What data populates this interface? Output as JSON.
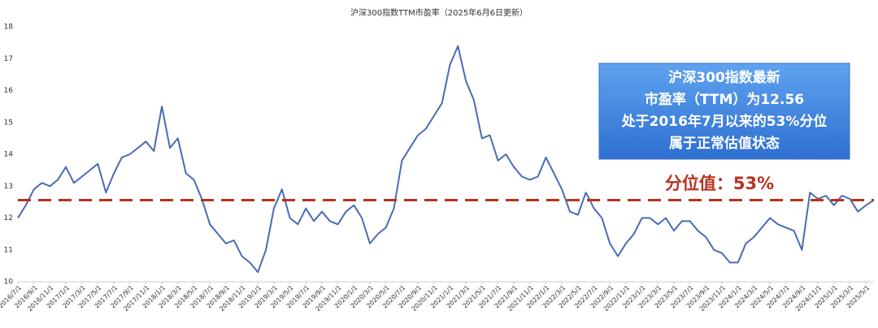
{
  "chart_data": {
    "type": "line",
    "title": "沪深300指数TTM市盈率（2025年6月6日更新）",
    "categories": [
      "2016/7/1",
      null,
      "2016/9/1",
      null,
      "2016/11/1",
      null,
      "2017/1/1",
      null,
      "2017/3/1",
      null,
      "2017/5/1",
      null,
      "2017/7/1",
      null,
      "2017/9/1",
      null,
      "2017/11/1",
      null,
      "2018/1/1",
      null,
      "2018/3/1",
      null,
      "2018/5/1",
      null,
      "2018/7/1",
      null,
      "2018/9/1",
      null,
      "2018/11/1",
      null,
      "2019/1/1",
      null,
      "2019/3/1",
      null,
      "2019/5/1",
      null,
      "2019/7/1",
      null,
      "2019/9/1",
      null,
      "2019/11/1",
      null,
      "2020/1/1",
      null,
      "2020/3/1",
      null,
      "2020/5/1",
      null,
      "2020/7/1",
      null,
      "2020/9/1",
      null,
      "2020/11/1",
      null,
      "2021/1/1",
      null,
      "2021/3/1",
      null,
      "2021/5/1",
      null,
      "2021/7/1",
      null,
      "2021/9/1",
      null,
      "2021/11/1",
      null,
      "2022/1/1",
      null,
      "2022/3/1",
      null,
      "2022/5/1",
      null,
      "2022/7/1",
      null,
      "2022/9/1",
      null,
      "2022/11/1",
      null,
      "2023/1/1",
      null,
      "2023/3/1",
      null,
      "2023/5/1",
      null,
      "2023/7/1",
      null,
      "2023/9/1",
      null,
      "2023/11/1",
      null,
      "2024/1/1",
      null,
      "2024/3/1",
      null,
      "2024/5/1",
      null,
      "2024/7/1",
      null,
      "2024/9/1",
      null,
      "2024/11/1",
      null,
      "2025/1/1",
      null,
      "2025/3/1",
      null,
      "2025/5/1",
      null
    ],
    "series": [
      {
        "name": "沪深300 TTM市盈率",
        "color": "#4a6bb5",
        "values": [
          12.0,
          12.4,
          12.9,
          13.1,
          13.0,
          13.2,
          13.6,
          13.1,
          13.3,
          13.5,
          13.7,
          12.8,
          13.4,
          13.9,
          14.0,
          14.2,
          14.4,
          14.1,
          15.5,
          14.2,
          14.5,
          13.4,
          13.2,
          12.6,
          11.8,
          11.5,
          11.2,
          11.3,
          10.8,
          10.6,
          10.3,
          11.0,
          12.3,
          12.9,
          12.0,
          11.8,
          12.3,
          11.9,
          12.2,
          11.9,
          11.8,
          12.2,
          12.4,
          12.0,
          11.2,
          11.5,
          11.7,
          12.3,
          13.8,
          14.2,
          14.6,
          14.8,
          15.2,
          15.6,
          16.8,
          17.4,
          16.3,
          15.7,
          14.5,
          14.6,
          13.8,
          14.0,
          13.6,
          13.3,
          13.2,
          13.3,
          13.9,
          13.4,
          12.9,
          12.2,
          12.1,
          12.8,
          12.3,
          12.0,
          11.2,
          10.8,
          11.2,
          11.5,
          12.0,
          12.0,
          11.8,
          12.0,
          11.6,
          11.9,
          11.9,
          11.6,
          11.4,
          11.0,
          10.9,
          10.6,
          10.6,
          11.2,
          11.4,
          11.7,
          12.0,
          11.8,
          11.7,
          11.6,
          11.0,
          12.8,
          12.6,
          12.7,
          12.4,
          12.7,
          12.6,
          12.2,
          12.4,
          12.56
        ]
      }
    ],
    "ylim": [
      10,
      18
    ],
    "yticks": [
      10,
      11,
      12,
      13,
      14,
      15,
      16,
      17,
      18
    ],
    "grid": false,
    "reference_line": {
      "value": 12.56,
      "color": "#b8321e",
      "label": "分位值：53%"
    },
    "annotation_box": [
      "沪深300指数最新",
      "市盈率（TTM）为12.56",
      "处于2016年7月以来的53%分位",
      "属于正常估值状态"
    ]
  }
}
